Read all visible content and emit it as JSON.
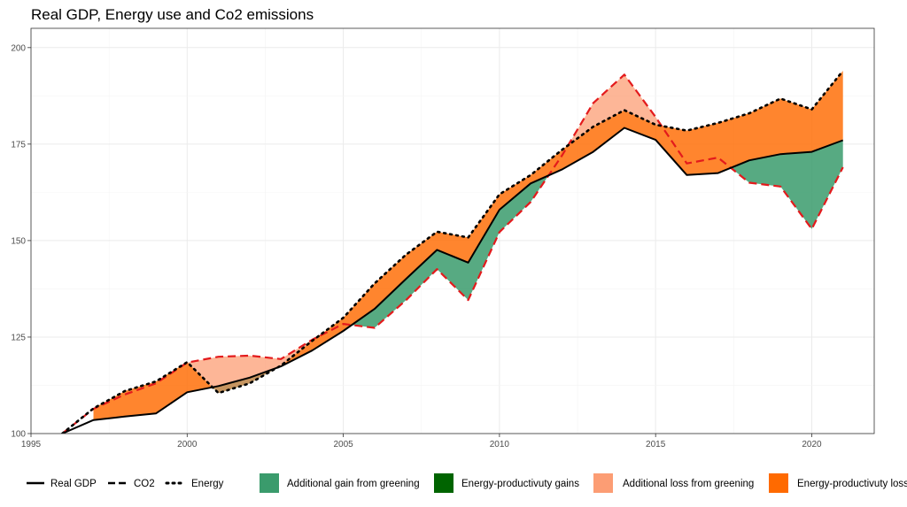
{
  "chart_data": {
    "type": "area",
    "title": "Real GDP, Energy use and Co2 emissions",
    "xlabel": "",
    "ylabel": "",
    "xlim": [
      1995,
      2022
    ],
    "ylim": [
      100,
      205
    ],
    "x_ticks": [
      1995,
      2000,
      2005,
      2010,
      2015,
      2020
    ],
    "y_ticks": [
      100,
      125,
      150,
      175,
      200
    ],
    "grid": true,
    "legend_position": "bottom",
    "x": [
      1996,
      1997,
      1998,
      1999,
      2000,
      2001,
      2002,
      2003,
      2004,
      2005,
      2006,
      2007,
      2008,
      2009,
      2010,
      2011,
      2012,
      2013,
      2014,
      2015,
      2016,
      2017,
      2018,
      2019,
      2020,
      2021
    ],
    "series": [
      {
        "name": "Real GDP",
        "line_style": "solid",
        "color": "#000000",
        "values": [
          100,
          103.5,
          104.4,
          105.2,
          110.7,
          112.3,
          114.5,
          117.4,
          121.5,
          126.6,
          132.3,
          140.0,
          147.6,
          144.3,
          158.0,
          164.8,
          168.4,
          173.0,
          179.2,
          176.1,
          167.0,
          167.5,
          170.8,
          172.4,
          173.0,
          176.0
        ]
      },
      {
        "name": "CO2",
        "line_style": "dashed",
        "color": "#e31a1c",
        "values": [
          100,
          106.4,
          110.1,
          113.0,
          118.4,
          119.9,
          120.2,
          119.3,
          124.3,
          128.4,
          127.4,
          134.5,
          142.6,
          134.6,
          152.2,
          160.0,
          172.0,
          185.6,
          193.0,
          182.0,
          170.0,
          171.5,
          165.0,
          164.0,
          153.0,
          169.0
        ]
      },
      {
        "name": "Energy",
        "line_style": "dotted",
        "color": "#000000",
        "values": [
          100,
          106.5,
          111.0,
          113.5,
          118.5,
          110.5,
          113.0,
          117.6,
          124.0,
          130.0,
          138.9,
          146.3,
          152.3,
          150.8,
          162.0,
          167.0,
          173.5,
          179.5,
          183.8,
          180.0,
          178.5,
          180.5,
          183.0,
          186.8,
          184.0,
          194.0
        ]
      }
    ],
    "area_fills": [
      {
        "name": "Additional gain from greening",
        "color": "#3a9b6c",
        "between": [
          "Real GDP",
          "CO2"
        ],
        "where": "CO2 below Real GDP"
      },
      {
        "name": "Energy-productivuty gains",
        "color": "#006400",
        "between": [
          "Real GDP",
          "Energy"
        ],
        "where": "Energy below Real GDP"
      },
      {
        "name": "Additional loss from greening",
        "color": "#fc9d74",
        "between": [
          "Energy",
          "CO2"
        ],
        "where": "CO2 above Energy"
      },
      {
        "name": "Energy-productivuty losses",
        "color": "#ff6a00",
        "between": [
          "Real GDP",
          "Energy"
        ],
        "where": "Energy above Real GDP"
      }
    ],
    "legend": {
      "line_entries": [
        "Real GDP",
        "CO2",
        "Energy"
      ],
      "fill_entries": [
        "Additional gain from greening",
        "Energy-productivuty gains",
        "Additional loss from greening",
        "Energy-productivuty losses"
      ]
    }
  }
}
